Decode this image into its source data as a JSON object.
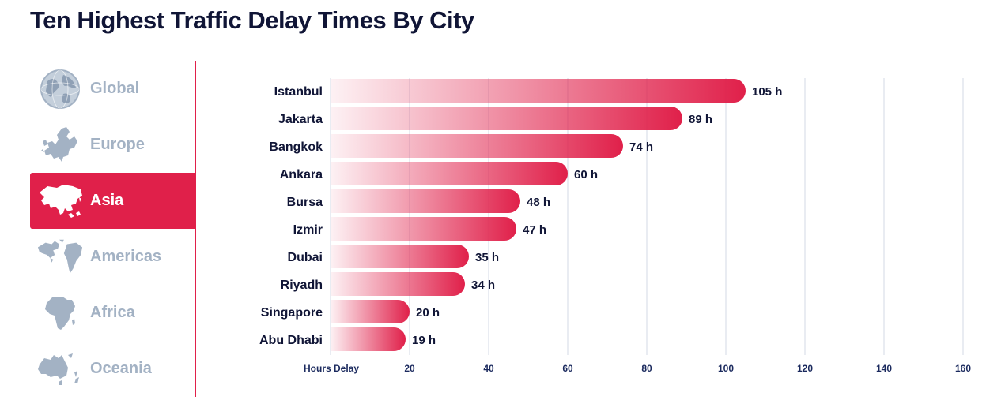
{
  "title": "Ten Highest Traffic Delay Times By City",
  "regions": [
    {
      "label": "Global",
      "icon": "globe-icon",
      "active": false
    },
    {
      "label": "Europe",
      "icon": "europe-map-icon",
      "active": false
    },
    {
      "label": "Asia",
      "icon": "asia-map-icon",
      "active": true
    },
    {
      "label": "Americas",
      "icon": "americas-map-icon",
      "active": false
    },
    {
      "label": "Africa",
      "icon": "africa-map-icon",
      "active": false
    },
    {
      "label": "Oceania",
      "icon": "oceania-map-icon",
      "active": false
    }
  ],
  "colors": {
    "accent": "#e0204a",
    "inactive": "#a3b2c4",
    "title": "#101536",
    "axis": "#1b2a5e"
  },
  "chart_data": {
    "type": "bar",
    "orientation": "horizontal",
    "categories": [
      "Istanbul",
      "Jakarta",
      "Bangkok",
      "Ankara",
      "Bursa",
      "Izmir",
      "Dubai",
      "Riyadh",
      "Singapore",
      "Abu Dhabi"
    ],
    "values": [
      105,
      89,
      74,
      60,
      48,
      47,
      35,
      34,
      20,
      19
    ],
    "data_labels": [
      "105 h",
      "89 h",
      "74 h",
      "60 h",
      "48 h",
      "47 h",
      "35 h",
      "34 h",
      "20 h",
      "19 h"
    ],
    "xlabel": "Hours Delay",
    "xlim": [
      0,
      160
    ],
    "xticks": [
      20,
      40,
      60,
      80,
      100,
      120,
      140,
      160
    ],
    "grid": true
  }
}
